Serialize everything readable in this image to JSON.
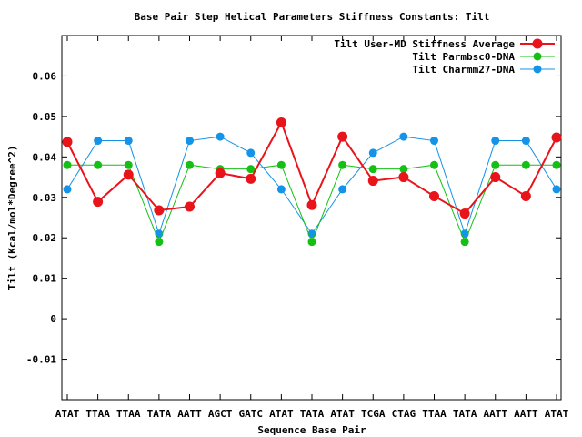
{
  "chart_data": {
    "type": "line",
    "title": "Base Pair Step Helical Parameters Stiffness Constants: Tilt",
    "xlabel": "Sequence Base Pair",
    "ylabel": "Tilt (Kcal/mol*Degree^2)",
    "categories": [
      "ATAT",
      "TTAA",
      "TTAA",
      "TATA",
      "AATT",
      "AGCT",
      "GATC",
      "ATAT",
      "TATA",
      "ATAT",
      "TCGA",
      "CTAG",
      "TTAA",
      "TATA",
      "AATT",
      "AATT",
      "ATAT"
    ],
    "ylim": [
      -0.02,
      0.07
    ],
    "yticks": [
      -0.01,
      0,
      0.01,
      0.02,
      0.03,
      0.04,
      0.05,
      0.06
    ],
    "ytick_labels": [
      "-0.01",
      "0",
      "0.01",
      "0.02",
      "0.03",
      "0.04",
      "0.05",
      "0.06"
    ],
    "grid": false,
    "legend_position": "top-right",
    "series": [
      {
        "name": "Tilt User-MD Stiffness Average",
        "color": "#e8141a",
        "values": [
          0.0437,
          0.0289,
          0.0356,
          0.0268,
          0.0277,
          0.036,
          0.0346,
          0.0485,
          0.0281,
          0.045,
          0.0341,
          0.035,
          0.0303,
          0.026,
          0.035,
          0.0303,
          0.0448
        ]
      },
      {
        "name": "Tilt Parmbsc0-DNA",
        "color": "#14c014",
        "values": [
          0.038,
          0.038,
          0.038,
          0.019,
          0.038,
          0.037,
          0.037,
          0.038,
          0.019,
          0.038,
          0.037,
          0.037,
          0.038,
          0.019,
          0.038,
          0.038,
          0.038
        ]
      },
      {
        "name": "Tilt Charmm27-DNA",
        "color": "#1493e8",
        "values": [
          0.032,
          0.044,
          0.044,
          0.021,
          0.044,
          0.045,
          0.041,
          0.032,
          0.021,
          0.032,
          0.041,
          0.045,
          0.044,
          0.021,
          0.044,
          0.044,
          0.032
        ]
      }
    ]
  }
}
